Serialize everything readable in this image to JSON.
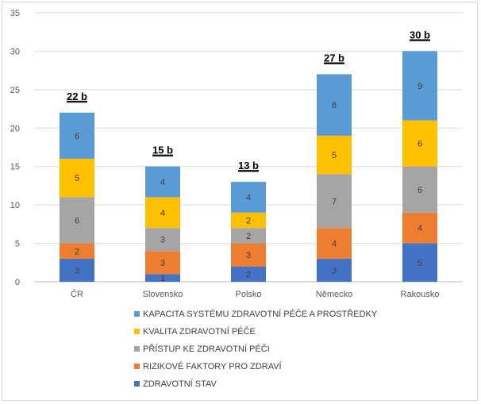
{
  "chart_data": {
    "type": "bar",
    "stacked": true,
    "categories": [
      "ČR",
      "Slovensko",
      "Polsko",
      "Německo",
      "Rakousko"
    ],
    "series": [
      {
        "name": "ZDRAVOTNÍ STAV",
        "color": "#4472C4",
        "values": [
          3,
          1,
          2,
          3,
          5
        ]
      },
      {
        "name": "RIZIKOVÉ FAKTORY PRO ZDRAVÍ",
        "color": "#ED7D31",
        "values": [
          2,
          3,
          3,
          4,
          4
        ]
      },
      {
        "name": "PŘÍSTUP KE ZDRAVOTNÍ PÉČI",
        "color": "#A5A5A5",
        "values": [
          6,
          3,
          2,
          7,
          6
        ]
      },
      {
        "name": "KVALITA ZDRAVOTNÍ PÉČE",
        "color": "#FFC000",
        "values": [
          5,
          4,
          2,
          5,
          6
        ]
      },
      {
        "name": "KAPACITA SYSTÉMU ZDRAVOTNÍ PÉČE A PROSTŘEDKY",
        "color": "#5B9BD5",
        "values": [
          6,
          4,
          4,
          8,
          9
        ]
      }
    ],
    "totals": [
      "22 b",
      "15 b",
      "13 b",
      "27 b",
      "30 b"
    ],
    "ylim": [
      0,
      35
    ],
    "yticks": [
      0,
      5,
      10,
      15,
      20,
      25,
      30,
      35
    ],
    "grid": true,
    "legend_position": "bottom",
    "legend_order": [
      4,
      3,
      2,
      1,
      0
    ]
  }
}
